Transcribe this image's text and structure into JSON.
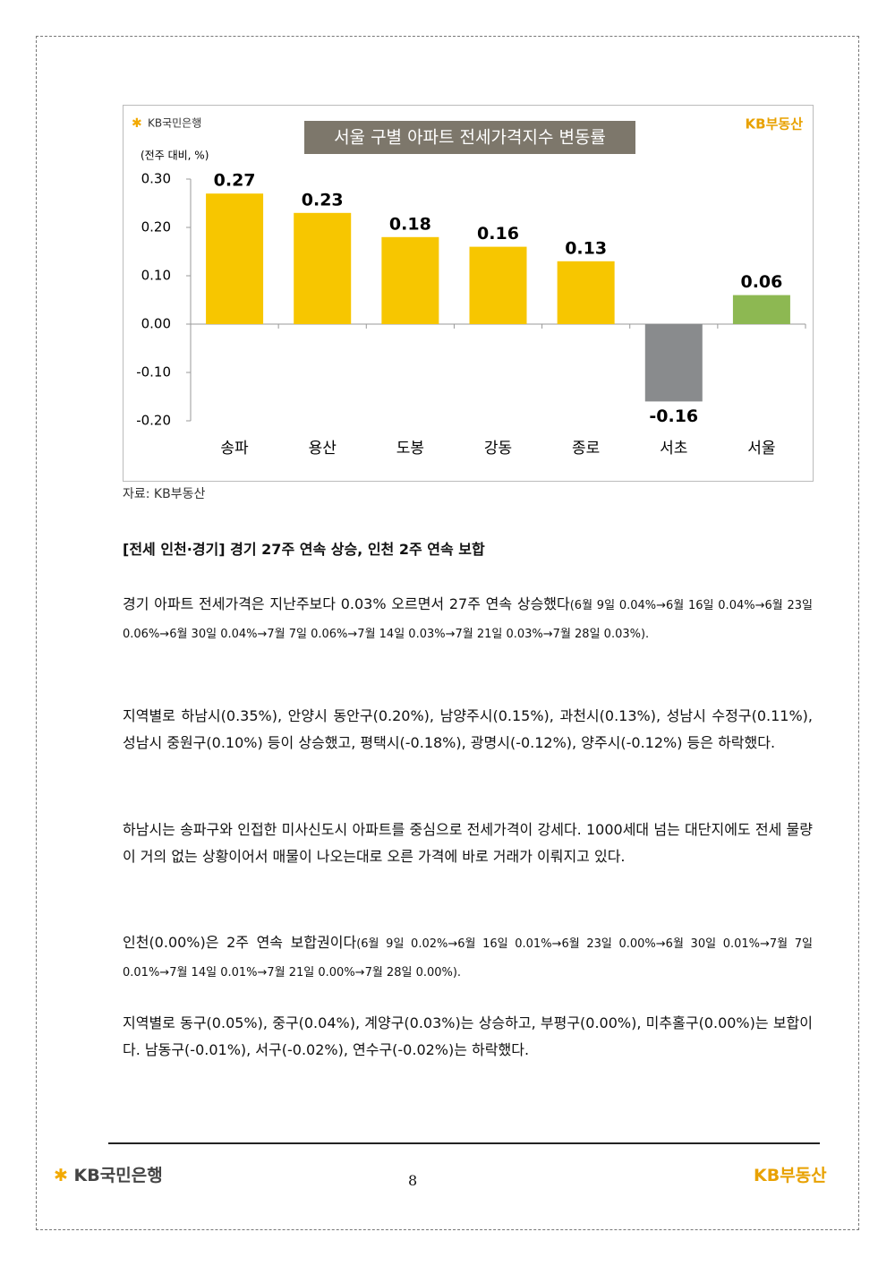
{
  "chart_data": {
    "type": "bar",
    "logo_left": "KB국민은행",
    "logo_right": "KB부동산",
    "title": "서울 구별 아파트 전세가격지수 변동률",
    "y_label": "(전주 대비, %)",
    "categories": [
      "송파",
      "용산",
      "도봉",
      "강동",
      "종로",
      "서초",
      "서울"
    ],
    "values": [
      0.27,
      0.23,
      0.18,
      0.16,
      0.13,
      -0.16,
      0.06
    ],
    "colors": [
      "#f7c600",
      "#f7c600",
      "#f7c600",
      "#f7c600",
      "#f7c600",
      "#898b8d",
      "#8db852"
    ],
    "ylim": [
      -0.2,
      0.3
    ],
    "yticks": [
      {
        "value": 0.3,
        "label": "0.30"
      },
      {
        "value": 0.2,
        "label": "0.20"
      },
      {
        "value": 0.1,
        "label": "0.10"
      },
      {
        "value": 0,
        "label": "0.00"
      },
      {
        "value": -0.1,
        "label": "-0.10"
      },
      {
        "value": -0.2,
        "label": "-0.20"
      }
    ]
  },
  "source": "자료: KB부동산",
  "section_title": "[전세 인천·경기] 경기 27주 연속 상승, 인천 2주 연속 보합",
  "paragraphs": [
    {
      "text": "경기 아파트 전세가격은 지난주보다 0.03% 오르면서 27주 연속 상승했다",
      "note": "(6월 9일 0.04%→6월 16일 0.04%→6월 23일 0.06%→6월 30일 0.04%→7월 7일 0.06%→7월 14일 0.03%→7월 21일 0.03%→7월 28일 0.03%)."
    },
    {
      "text": "지역별로 하남시(0.35%), 안양시 동안구(0.20%), 남양주시(0.15%), 과천시(0.13%), 성남시 수정구(0.11%), 성남시 중원구(0.10%) 등이 상승했고, 평택시(-0.18%), 광명시(-0.12%), 양주시(-0.12%) 등은 하락했다."
    },
    {
      "text": "하남시는 송파구와 인접한 미사신도시 아파트를 중심으로 전세가격이 강세다. 1000세대 넘는 대단지에도 전세 물량이 거의 없는 상황이어서 매물이 나오는대로 오른 가격에 바로 거래가 이뤄지고 있다."
    },
    {
      "text": "인천(0.00%)은 2주 연속 보합권이다",
      "note": "(6월 9일 0.02%→6월 16일 0.01%→6월 23일 0.00%→6월 30일 0.01%→7월 7일 0.01%→7월 14일 0.01%→7월 21일 0.00%→7월 28일 0.00%)."
    },
    {
      "text": "지역별로 동구(0.05%), 중구(0.04%), 계양구(0.03%)는 상승하고, 부평구(0.00%), 미추홀구(0.00%)는 보합이다. 남동구(-0.01%), 서구(-0.02%), 연수구(-0.02%)는 하락했다."
    }
  ],
  "footer": {
    "logo_left": "KB국민은행",
    "page": "8",
    "logo_right": "KB부동산"
  }
}
